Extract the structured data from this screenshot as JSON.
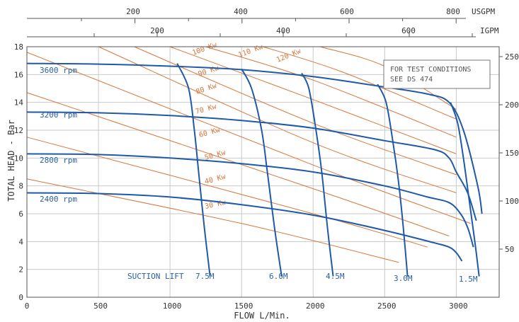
{
  "chart_data": {
    "type": "line",
    "xlabel": "FLOW  L/Min.",
    "ylabel": "TOTAL HEAD - Bar",
    "xlim": [
      0,
      3300
    ],
    "ylim": [
      0,
      18
    ],
    "x_ticks": [
      0,
      500,
      1000,
      1500,
      2000,
      2500,
      3000
    ],
    "y_ticks": [
      0,
      2,
      4,
      6,
      8,
      10,
      12,
      14,
      16,
      18
    ],
    "grid": true,
    "top_axis_1": {
      "unit": "USGPM",
      "ticks": [
        "200",
        "400",
        "600",
        "800"
      ]
    },
    "top_axis_2": {
      "unit": "IGPM",
      "ticks": [
        "200",
        "400",
        "600"
      ]
    },
    "right_axis": {
      "ticks": [
        "50",
        "100",
        "150",
        "200",
        "250"
      ]
    },
    "note": [
      "FOR TEST CONDITIONS",
      "SEE DS 474"
    ],
    "suction_lift_label": "SUCTION LIFT",
    "colors": {
      "speed": "#1f5aa6",
      "power": "#d9773a",
      "text_blue": "#2a5f9e",
      "grid": "#c9c9c9"
    },
    "speed_curves": [
      {
        "name": "3600 rpm",
        "points": [
          [
            0,
            16.8
          ],
          [
            500,
            16.75
          ],
          [
            1000,
            16.6
          ],
          [
            1500,
            16.35
          ],
          [
            2000,
            15.85
          ],
          [
            2500,
            15.1
          ],
          [
            2800,
            14.6
          ],
          [
            2950,
            14.0
          ],
          [
            3050,
            12.0
          ],
          [
            3150,
            8.0
          ],
          [
            3180,
            6.0
          ]
        ]
      },
      {
        "name": "3200 rpm",
        "points": [
          [
            0,
            13.3
          ],
          [
            500,
            13.25
          ],
          [
            1000,
            13.05
          ],
          [
            1500,
            12.7
          ],
          [
            2000,
            12.15
          ],
          [
            2500,
            11.25
          ],
          [
            2850,
            10.6
          ],
          [
            2950,
            10.0
          ],
          [
            3000,
            9.0
          ],
          [
            3080,
            7.5
          ],
          [
            3140,
            5.5
          ]
        ]
      },
      {
        "name": "2800 rpm",
        "points": [
          [
            0,
            10.3
          ],
          [
            500,
            10.25
          ],
          [
            1000,
            10.0
          ],
          [
            1500,
            9.6
          ],
          [
            2000,
            9.0
          ],
          [
            2500,
            8.0
          ],
          [
            2800,
            7.2
          ],
          [
            2950,
            6.8
          ],
          [
            3030,
            6.0
          ],
          [
            3080,
            5.0
          ],
          [
            3120,
            3.6
          ]
        ]
      },
      {
        "name": "2400 rpm",
        "points": [
          [
            0,
            7.5
          ],
          [
            500,
            7.45
          ],
          [
            1000,
            7.2
          ],
          [
            1500,
            6.65
          ],
          [
            2000,
            5.9
          ],
          [
            2500,
            4.8
          ],
          [
            2850,
            3.9
          ],
          [
            2950,
            3.6
          ],
          [
            3000,
            3.2
          ],
          [
            3040,
            2.6
          ]
        ]
      }
    ],
    "cavitation_curves": [
      {
        "label": "7.5M",
        "points": [
          [
            1050,
            16.8
          ],
          [
            1130,
            15.0
          ],
          [
            1170,
            12.0
          ],
          [
            1200,
            9.0
          ],
          [
            1240,
            5.0
          ],
          [
            1280,
            1.5
          ]
        ]
      },
      {
        "label": "6.0M",
        "points": [
          [
            1500,
            16.4
          ],
          [
            1570,
            15.0
          ],
          [
            1640,
            12.0
          ],
          [
            1680,
            9.0
          ],
          [
            1730,
            5.0
          ],
          [
            1780,
            1.5
          ]
        ]
      },
      {
        "label": "4.5M",
        "points": [
          [
            1920,
            16.1
          ],
          [
            1970,
            15.0
          ],
          [
            2020,
            12.0
          ],
          [
            2060,
            9.0
          ],
          [
            2100,
            5.0
          ],
          [
            2140,
            1.5
          ]
        ]
      },
      {
        "label": "3.0M",
        "points": [
          [
            2450,
            15.3
          ],
          [
            2510,
            14.0
          ],
          [
            2560,
            11.0
          ],
          [
            2600,
            8.0
          ],
          [
            2630,
            5.0
          ],
          [
            2660,
            1.5
          ]
        ]
      },
      {
        "label": "1.5M",
        "points": [
          [
            2960,
            14.0
          ],
          [
            3010,
            12.5
          ],
          [
            3050,
            10.0
          ],
          [
            3090,
            7.0
          ],
          [
            3130,
            4.0
          ],
          [
            3160,
            1.5
          ]
        ]
      }
    ],
    "power_curves": [
      {
        "label": "120 Kw",
        "points": [
          [
            2050,
            18.0
          ],
          [
            2500,
            16.6
          ],
          [
            3000,
            13.5
          ]
        ]
      },
      {
        "label": "110 Kw",
        "points": [
          [
            1650,
            18.0
          ],
          [
            2200,
            16.2
          ],
          [
            3000,
            12.8
          ]
        ]
      },
      {
        "label": "100 Kw",
        "points": [
          [
            1250,
            18.0
          ],
          [
            2000,
            15.6
          ],
          [
            3000,
            11.5
          ]
        ]
      },
      {
        "label": "90 Kw",
        "points": [
          [
            1000,
            18.0
          ],
          [
            2000,
            14.2
          ],
          [
            3000,
            10.3
          ]
        ]
      },
      {
        "label": "80 Kw",
        "points": [
          [
            750,
            18.0
          ],
          [
            2000,
            12.5
          ],
          [
            3000,
            8.8
          ]
        ]
      },
      {
        "label": "70 Kw",
        "points": [
          [
            500,
            18.0
          ],
          [
            2000,
            11.1
          ],
          [
            3000,
            7.5
          ]
        ]
      },
      {
        "label": "60 Kw",
        "points": [
          [
            0,
            17.6
          ],
          [
            2000,
            9.5
          ],
          [
            3100,
            5.3
          ]
        ]
      },
      {
        "label": "50 Kw",
        "points": [
          [
            0,
            14.7
          ],
          [
            2000,
            7.8
          ],
          [
            2950,
            4.4
          ]
        ]
      },
      {
        "label": "40 Kw",
        "points": [
          [
            0,
            11.5
          ],
          [
            2000,
            6.0
          ],
          [
            2800,
            3.6
          ]
        ]
      },
      {
        "label": "30 Kw",
        "points": [
          [
            0,
            8.5
          ],
          [
            1500,
            5.3
          ],
          [
            2600,
            2.5
          ]
        ]
      }
    ]
  }
}
